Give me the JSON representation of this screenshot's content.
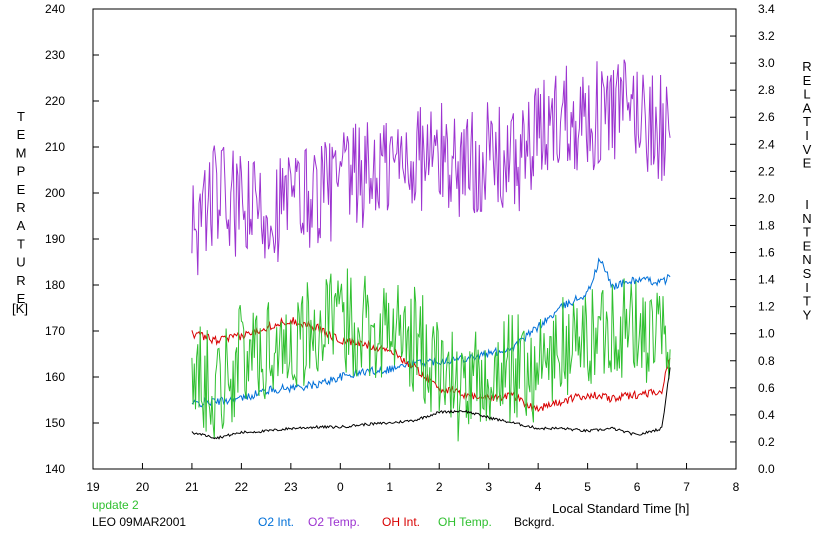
{
  "chart_data": {
    "type": "line",
    "left_axis": {
      "title": "TEMPERATURE",
      "unit": "[K]",
      "min": 140,
      "max": 240,
      "ticks": [
        "140",
        "150",
        "160",
        "170",
        "180",
        "190",
        "200",
        "210",
        "220",
        "230",
        "240"
      ]
    },
    "right_axis": {
      "title": "RELATIVE  INTENSITY",
      "min": 0,
      "max": 3.4,
      "ticks": [
        "0.0",
        "0.2",
        "0.4",
        "0.6",
        "0.8",
        "1.0",
        "1.2",
        "1.4",
        "1.6",
        "1.8",
        "2.0",
        "2.2",
        "2.4",
        "2.6",
        "2.8",
        "3.0",
        "3.2",
        "3.4"
      ]
    },
    "x_axis": {
      "label": "Local Standard Time [h]",
      "ticks": [
        "19",
        "20",
        "21",
        "22",
        "23",
        "0",
        "1",
        "2",
        "3",
        "4",
        "5",
        "6",
        "7",
        "8"
      ],
      "start_hour": 19,
      "end_hour": 8
    },
    "grid": false,
    "annotations": {
      "update": "update 2",
      "station": "LEO 09MAR2001"
    },
    "colors": {
      "o2_int": "#0070d8",
      "o2_temp": "#9c34d0",
      "oh_int": "#d80000",
      "oh_temp": "#30c030",
      "bckgrd": "#000000"
    },
    "series": [
      {
        "name": "O2 Int.",
        "axis": "right",
        "color": "#0070d8",
        "points": [
          [
            "21:00",
            0.48
          ],
          [
            "21:30",
            0.5
          ],
          [
            "22:00",
            0.52
          ],
          [
            "22:30",
            0.58
          ],
          [
            "23:00",
            0.6
          ],
          [
            "23:30",
            0.62
          ],
          [
            "0:00",
            0.68
          ],
          [
            "0:30",
            0.72
          ],
          [
            "1:00",
            0.74
          ],
          [
            "1:30",
            0.78
          ],
          [
            "2:00",
            0.8
          ],
          [
            "2:30",
            0.82
          ],
          [
            "3:00",
            0.85
          ],
          [
            "3:30",
            0.9
          ],
          [
            "4:00",
            1.05
          ],
          [
            "4:30",
            1.2
          ],
          [
            "5:00",
            1.3
          ],
          [
            "5:15",
            1.55
          ],
          [
            "5:30",
            1.35
          ],
          [
            "6:00",
            1.4
          ],
          [
            "6:30",
            1.38
          ],
          [
            "6:40",
            1.42
          ]
        ]
      },
      {
        "name": "O2 Temp.",
        "axis": "left",
        "color": "#9c34d0",
        "points": [
          [
            "21:00",
            192
          ],
          [
            "21:30",
            200
          ],
          [
            "22:00",
            196
          ],
          [
            "22:30",
            196
          ],
          [
            "23:00",
            198
          ],
          [
            "23:30",
            200
          ],
          [
            "0:00",
            202
          ],
          [
            "0:30",
            204
          ],
          [
            "1:00",
            206
          ],
          [
            "1:30",
            208
          ],
          [
            "2:00",
            208
          ],
          [
            "2:30",
            206
          ],
          [
            "3:00",
            208
          ],
          [
            "3:30",
            206
          ],
          [
            "4:00",
            212
          ],
          [
            "4:30",
            218
          ],
          [
            "5:00",
            216
          ],
          [
            "5:30",
            218
          ],
          [
            "6:00",
            218
          ],
          [
            "6:30",
            214
          ],
          [
            "6:40",
            212
          ]
        ]
      },
      {
        "name": "OH Int.",
        "axis": "right",
        "color": "#d80000",
        "points": [
          [
            "21:00",
            1.0
          ],
          [
            "21:30",
            0.95
          ],
          [
            "22:00",
            0.98
          ],
          [
            "22:30",
            1.05
          ],
          [
            "23:00",
            1.1
          ],
          [
            "23:30",
            1.05
          ],
          [
            "0:00",
            0.95
          ],
          [
            "0:30",
            0.92
          ],
          [
            "1:00",
            0.88
          ],
          [
            "1:30",
            0.75
          ],
          [
            "2:00",
            0.6
          ],
          [
            "2:30",
            0.55
          ],
          [
            "3:00",
            0.52
          ],
          [
            "3:30",
            0.55
          ],
          [
            "3:45",
            0.48
          ],
          [
            "4:00",
            0.45
          ],
          [
            "4:30",
            0.5
          ],
          [
            "5:00",
            0.55
          ],
          [
            "5:30",
            0.52
          ],
          [
            "6:00",
            0.55
          ],
          [
            "6:30",
            0.58
          ],
          [
            "6:40",
            0.82
          ]
        ]
      },
      {
        "name": "OH Temp.",
        "axis": "left",
        "color": "#30c030",
        "points": [
          [
            "21:00",
            162
          ],
          [
            "21:30",
            158
          ],
          [
            "22:00",
            164
          ],
          [
            "22:30",
            166
          ],
          [
            "23:00",
            168
          ],
          [
            "23:30",
            170
          ],
          [
            "0:00",
            172
          ],
          [
            "0:30",
            172
          ],
          [
            "1:00",
            170
          ],
          [
            "1:30",
            168
          ],
          [
            "2:00",
            162
          ],
          [
            "2:30",
            156
          ],
          [
            "3:00",
            160
          ],
          [
            "3:30",
            162
          ],
          [
            "4:00",
            162
          ],
          [
            "4:30",
            166
          ],
          [
            "5:00",
            168
          ],
          [
            "5:30",
            172
          ],
          [
            "6:00",
            170
          ],
          [
            "6:30",
            168
          ],
          [
            "6:40",
            166
          ]
        ]
      },
      {
        "name": "Bckgrd.",
        "axis": "right",
        "color": "#000000",
        "points": [
          [
            "21:00",
            0.27
          ],
          [
            "21:30",
            0.23
          ],
          [
            "22:00",
            0.27
          ],
          [
            "22:30",
            0.28
          ],
          [
            "23:00",
            0.3
          ],
          [
            "23:30",
            0.31
          ],
          [
            "0:00",
            0.31
          ],
          [
            "0:30",
            0.33
          ],
          [
            "1:00",
            0.34
          ],
          [
            "1:30",
            0.36
          ],
          [
            "2:00",
            0.42
          ],
          [
            "2:30",
            0.43
          ],
          [
            "3:00",
            0.38
          ],
          [
            "3:30",
            0.34
          ],
          [
            "4:00",
            0.3
          ],
          [
            "4:30",
            0.3
          ],
          [
            "5:00",
            0.28
          ],
          [
            "5:30",
            0.3
          ],
          [
            "6:00",
            0.25
          ],
          [
            "6:30",
            0.3
          ],
          [
            "6:40",
            0.75
          ]
        ]
      }
    ]
  }
}
